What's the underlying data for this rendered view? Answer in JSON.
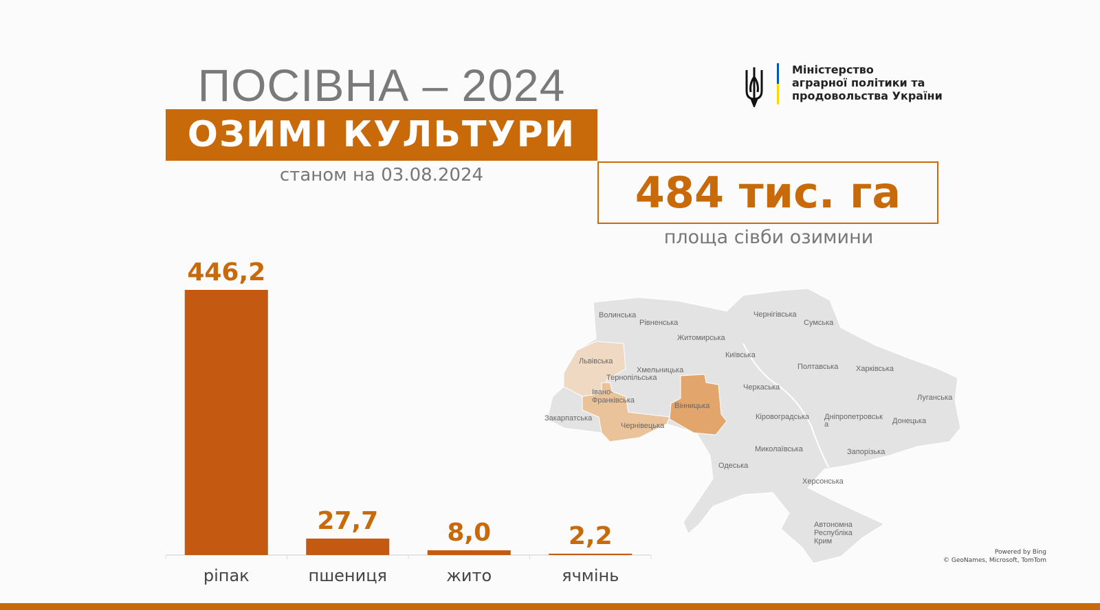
{
  "header": {
    "title": "ПОСІВНА – 2024",
    "banner": "ОЗИМІ КУЛЬТУРИ",
    "date": "станом на 03.08.2024"
  },
  "ministry": {
    "line1": "Міністерство",
    "line2": "аграрної політики та",
    "line3": "продовольства України",
    "emblem": "trident-icon",
    "flag_colors": [
      "#0057b7",
      "#ffd700"
    ]
  },
  "total": {
    "value": "484 тис. га",
    "label": "площа сівби озимини"
  },
  "colors": {
    "accent": "#c8690a",
    "bar": "#c45a12",
    "region_light": "#f0d9c2",
    "region_mid": "#ebc39b",
    "region_dark": "#e2a56c",
    "map_base": "#e3e3e3"
  },
  "chart_data": {
    "type": "bar",
    "categories": [
      "ріпак",
      "пшениця",
      "жито",
      "ячмінь"
    ],
    "values": [
      446.2,
      27.7,
      8.0,
      2.2
    ],
    "value_labels": [
      "446,2",
      "27,7",
      "8,0",
      "2,2"
    ],
    "title": "",
    "xlabel": "",
    "ylabel": "",
    "grid": false
  },
  "map": {
    "regions": [
      "Волинська",
      "Рівненська",
      "Житомирська",
      "Чернігівська",
      "Сумська",
      "Київська",
      "Львівська",
      "Хмельницька",
      "Тернопільська",
      "Полтавська",
      "Харківська",
      "Черкаська",
      "Луганська",
      "Івано-",
      "Франківська",
      "Вінницька",
      "Закарпатська",
      "Чернівецька",
      "Кіровоградська",
      "Дніпропетровськ",
      "а",
      "Донецька",
      "Миколаївська",
      "Запорізька",
      "Одеська",
      "Херсонська",
      "Автономна",
      "Республіка",
      "Крим"
    ],
    "highlight": {
      "light": [
        "Львівська"
      ],
      "medium": [
        "Івано-Франківська",
        "Чернівецька"
      ],
      "dark": [
        "Вінницька"
      ]
    },
    "attribution_1": "Powered by Bing",
    "attribution_2": "© GeoNames, Microsoft, TomTom"
  }
}
